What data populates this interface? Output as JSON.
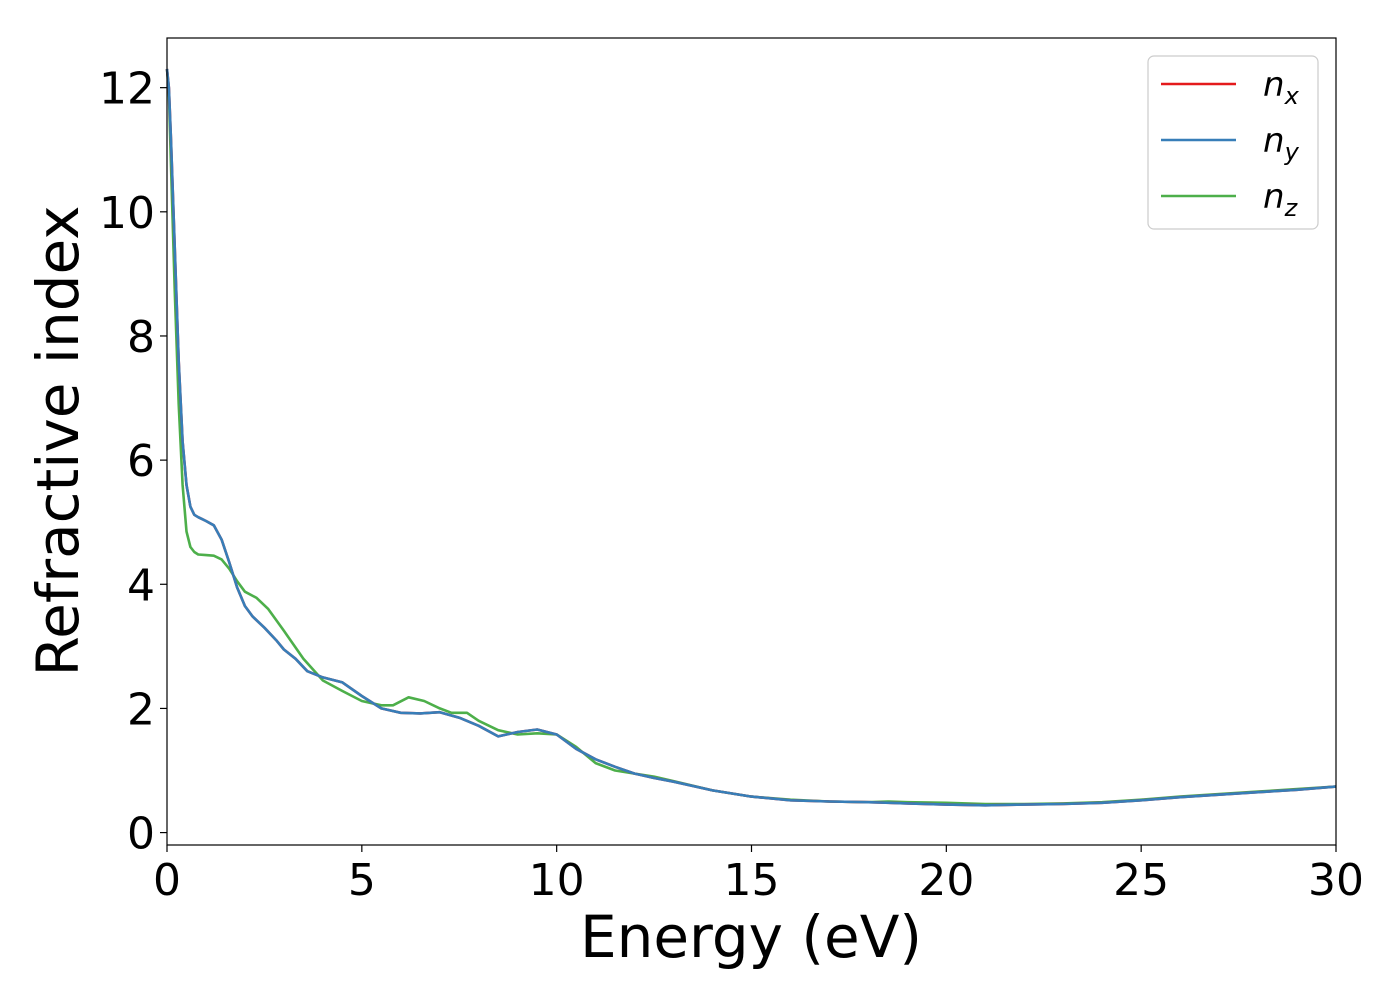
{
  "chart_data": {
    "type": "line",
    "title": "",
    "xlabel": "Energy (eV)",
    "ylabel": "Refractive index",
    "xlim": [
      0,
      30
    ],
    "ylim": [
      -0.2,
      12.8
    ],
    "xticks": [
      0,
      5,
      10,
      15,
      20,
      25,
      30
    ],
    "yticks": [
      0,
      2,
      4,
      6,
      8,
      10,
      12
    ],
    "grid": false,
    "legend_position": "top-right",
    "series": [
      {
        "name": "n",
        "subscript": "x",
        "color": "#e41a1c",
        "x": [
          0,
          0.05,
          0.1,
          0.2,
          0.3,
          0.4,
          0.5,
          0.6,
          0.7,
          0.8,
          0.9,
          1.0,
          1.2,
          1.4,
          1.6,
          1.8,
          2.0,
          2.2,
          2.5,
          2.8,
          3.0,
          3.3,
          3.6,
          4.0,
          4.5,
          5.0,
          5.5,
          6.0,
          6.5,
          7.0,
          7.5,
          8.0,
          8.5,
          9.0,
          9.5,
          10.0,
          10.5,
          11.0,
          11.5,
          12.0,
          12.5,
          13.0,
          14.0,
          15.0,
          16.0,
          17.0,
          18.0,
          19.0,
          20.0,
          21.0,
          22.0,
          23.0,
          24.0,
          25.0,
          26.0,
          27.0,
          28.0,
          29.0,
          30.0
        ],
        "y": [
          12.3,
          12.0,
          11.2,
          9.4,
          7.6,
          6.3,
          5.6,
          5.25,
          5.12,
          5.08,
          5.05,
          5.02,
          4.95,
          4.72,
          4.35,
          3.95,
          3.65,
          3.48,
          3.3,
          3.1,
          2.95,
          2.8,
          2.6,
          2.5,
          2.42,
          2.2,
          2.0,
          1.93,
          1.92,
          1.94,
          1.85,
          1.72,
          1.55,
          1.62,
          1.66,
          1.58,
          1.35,
          1.18,
          1.06,
          0.95,
          0.88,
          0.82,
          0.68,
          0.58,
          0.52,
          0.5,
          0.49,
          0.47,
          0.45,
          0.44,
          0.45,
          0.46,
          0.48,
          0.52,
          0.57,
          0.61,
          0.65,
          0.69,
          0.74
        ]
      },
      {
        "name": "n",
        "subscript": "y",
        "color": "#377eb8",
        "x": [
          0,
          0.05,
          0.1,
          0.2,
          0.3,
          0.4,
          0.5,
          0.6,
          0.7,
          0.8,
          0.9,
          1.0,
          1.2,
          1.4,
          1.6,
          1.8,
          2.0,
          2.2,
          2.5,
          2.8,
          3.0,
          3.3,
          3.6,
          4.0,
          4.5,
          5.0,
          5.5,
          6.0,
          6.5,
          7.0,
          7.5,
          8.0,
          8.5,
          9.0,
          9.5,
          10.0,
          10.5,
          11.0,
          11.5,
          12.0,
          12.5,
          13.0,
          14.0,
          15.0,
          16.0,
          17.0,
          18.0,
          19.0,
          20.0,
          21.0,
          22.0,
          23.0,
          24.0,
          25.0,
          26.0,
          27.0,
          28.0,
          29.0,
          30.0
        ],
        "y": [
          12.3,
          12.0,
          11.2,
          9.4,
          7.6,
          6.3,
          5.6,
          5.25,
          5.12,
          5.08,
          5.05,
          5.02,
          4.95,
          4.72,
          4.35,
          3.95,
          3.65,
          3.48,
          3.3,
          3.1,
          2.95,
          2.8,
          2.6,
          2.5,
          2.42,
          2.2,
          2.0,
          1.93,
          1.92,
          1.94,
          1.85,
          1.72,
          1.55,
          1.62,
          1.66,
          1.58,
          1.35,
          1.18,
          1.06,
          0.95,
          0.88,
          0.82,
          0.68,
          0.58,
          0.52,
          0.5,
          0.49,
          0.47,
          0.45,
          0.44,
          0.45,
          0.46,
          0.48,
          0.52,
          0.57,
          0.61,
          0.65,
          0.69,
          0.74
        ]
      },
      {
        "name": "n",
        "subscript": "z",
        "color": "#4daf4a",
        "x": [
          0,
          0.05,
          0.1,
          0.2,
          0.3,
          0.4,
          0.5,
          0.6,
          0.7,
          0.8,
          1.0,
          1.2,
          1.4,
          1.6,
          1.8,
          2.0,
          2.3,
          2.6,
          3.0,
          3.5,
          4.0,
          4.5,
          5.0,
          5.5,
          5.8,
          6.2,
          6.6,
          7.0,
          7.3,
          7.7,
          8.0,
          8.5,
          9.0,
          9.5,
          10.0,
          10.5,
          11.0,
          11.5,
          12.0,
          12.5,
          13.0,
          14.0,
          15.0,
          16.0,
          17.0,
          18.0,
          18.5,
          19.0,
          20.0,
          21.0,
          22.0,
          23.0,
          24.0,
          25.0,
          26.0,
          27.0,
          28.0,
          29.0,
          30.0
        ],
        "y": [
          12.3,
          11.9,
          10.8,
          8.7,
          6.9,
          5.6,
          4.85,
          4.6,
          4.52,
          4.48,
          4.47,
          4.46,
          4.4,
          4.25,
          4.05,
          3.88,
          3.78,
          3.6,
          3.25,
          2.8,
          2.45,
          2.28,
          2.12,
          2.05,
          2.05,
          2.18,
          2.12,
          2.0,
          1.93,
          1.93,
          1.8,
          1.65,
          1.58,
          1.6,
          1.58,
          1.38,
          1.12,
          1.0,
          0.95,
          0.9,
          0.83,
          0.68,
          0.58,
          0.53,
          0.5,
          0.49,
          0.5,
          0.49,
          0.48,
          0.46,
          0.46,
          0.47,
          0.49,
          0.53,
          0.58,
          0.62,
          0.66,
          0.7,
          0.74
        ]
      }
    ]
  }
}
